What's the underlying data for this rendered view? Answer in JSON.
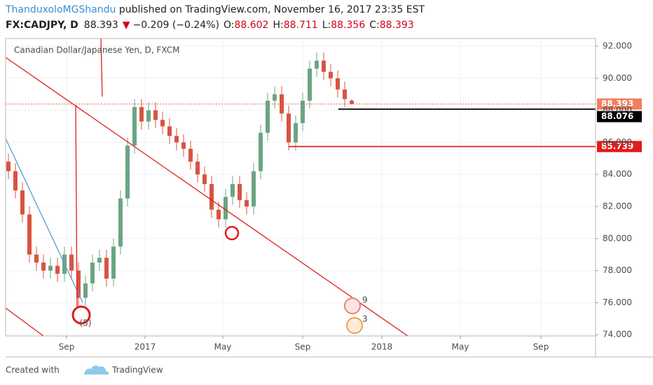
{
  "chart_data": {
    "type": "candlestick",
    "author": "ThanduxoloMGShandu",
    "published": " published on TradingView.com, November 16, 2017 23:35 EST",
    "symbol": "FX:CADJPY, D",
    "change": "−0.209 (−0.24%)",
    "ohlc_labels": [
      "O:",
      "H:",
      "L:",
      "C:"
    ],
    "title": "Canadian Dollar/Japanese Yen, D, FXCM",
    "annotations": [
      "(5)",
      "9",
      "3"
    ],
    "footer": [
      "Created with",
      "TradingView"
    ],
    "up_color": "#6ba583",
    "down_color": "#d75442",
    "categories": [
      null,
      null,
      null,
      null,
      null,
      null,
      null,
      null,
      null,
      null,
      null,
      null,
      null,
      null,
      null,
      null,
      null,
      null,
      null,
      null,
      null,
      null,
      null,
      null,
      null,
      null,
      null,
      null,
      null,
      null,
      null,
      null,
      null,
      null,
      null,
      null,
      null,
      null,
      null,
      null,
      null,
      null,
      null,
      null,
      null,
      null,
      null,
      null,
      null,
      null
    ],
    "open": [
      84.8,
      84.2,
      83,
      81.5,
      79,
      78.5,
      78,
      78.3,
      77.8,
      79,
      78,
      76.3,
      77.2,
      78.5,
      78.8,
      77.5,
      79.5,
      82.5,
      85.8,
      88.2,
      87.3,
      88,
      87.4,
      87,
      86.4,
      86,
      85.6,
      84.8,
      84,
      83.4,
      81.8,
      81.2,
      82.6,
      83.4,
      82.4,
      82,
      84.2,
      86.6,
      88.6,
      89,
      87.8,
      86,
      87.2,
      88.6,
      90.6,
      91.1,
      90.4,
      90,
      89.3,
      88.602
    ],
    "high": [
      85.3,
      84.7,
      83.5,
      82,
      79.5,
      79,
      78.8,
      78.8,
      79.5,
      79.5,
      78.5,
      77.7,
      79,
      79.3,
      79.3,
      80,
      83,
      86.3,
      88.7,
      88.7,
      88.5,
      88.5,
      87.9,
      87.5,
      86.9,
      86.5,
      86.1,
      85.3,
      84.5,
      83.9,
      82.3,
      83.1,
      83.9,
      83.9,
      82.9,
      84.7,
      87.1,
      89.1,
      89.5,
      89.5,
      88.3,
      87.7,
      89.1,
      91.1,
      91.6,
      91.6,
      90.9,
      90.5,
      89.8,
      88.711
    ],
    "low": [
      83.7,
      82.5,
      81,
      78.5,
      78,
      77.5,
      77.5,
      77.3,
      77.3,
      77.5,
      75.8,
      75.8,
      76.7,
      78,
      77,
      77,
      79,
      82,
      85.3,
      86.8,
      86.8,
      86.9,
      86.5,
      85.9,
      85.5,
      85.1,
      84.3,
      83.5,
      82.9,
      81.3,
      80.7,
      80.7,
      82.1,
      81.9,
      81.5,
      81.5,
      83.7,
      86.1,
      88.1,
      87.3,
      85.5,
      85.5,
      86.7,
      88.1,
      90.1,
      89.9,
      89.5,
      88.8,
      88.2,
      88.356
    ],
    "close": [
      84.2,
      83,
      81.5,
      79,
      78.5,
      78,
      78.3,
      77.8,
      79,
      78,
      76.3,
      77.2,
      78.5,
      78.8,
      77.5,
      79.5,
      82.5,
      85.8,
      88.2,
      87.3,
      88,
      87.4,
      87,
      86.4,
      86,
      85.6,
      84.8,
      84,
      83.4,
      81.8,
      81.2,
      82.6,
      83.4,
      82.4,
      82,
      84.2,
      86.6,
      88.6,
      89,
      87.8,
      86,
      87.2,
      88.6,
      90.6,
      91.1,
      90.4,
      90,
      89.3,
      88.7,
      88.393
    ],
    "levels": [
      {
        "value": 88.076,
        "color": "#000000"
      },
      {
        "value": 85.739,
        "color": "#e21b1b"
      }
    ],
    "xlim": [
      -0.4,
      83.8
    ],
    "xticks": [
      {
        "value": 8.3,
        "label": "Sep"
      },
      {
        "value": 19.5,
        "label": "2017"
      },
      {
        "value": 30.6,
        "label": "May"
      },
      {
        "value": 42,
        "label": "Sep"
      },
      {
        "value": 53.3,
        "label": "2018"
      },
      {
        "value": 64.5,
        "label": "May"
      },
      {
        "value": 76,
        "label": "Sep"
      }
    ],
    "ylim": [
      73.92,
      92.48
    ],
    "yticks": [
      {
        "value": 74,
        "label": "74.000"
      },
      {
        "value": 76,
        "label": "76.000"
      },
      {
        "value": 78,
        "label": "78.000"
      },
      {
        "value": 80,
        "label": "80.000"
      },
      {
        "value": 82,
        "label": "82.000"
      },
      {
        "value": 84,
        "label": "84.000"
      },
      {
        "value": 86,
        "label": "86.000"
      },
      {
        "value": 88,
        "label": "88.000"
      },
      {
        "value": 90,
        "label": "90.000"
      },
      {
        "value": 92,
        "label": "92.000"
      }
    ],
    "grid": true
  }
}
